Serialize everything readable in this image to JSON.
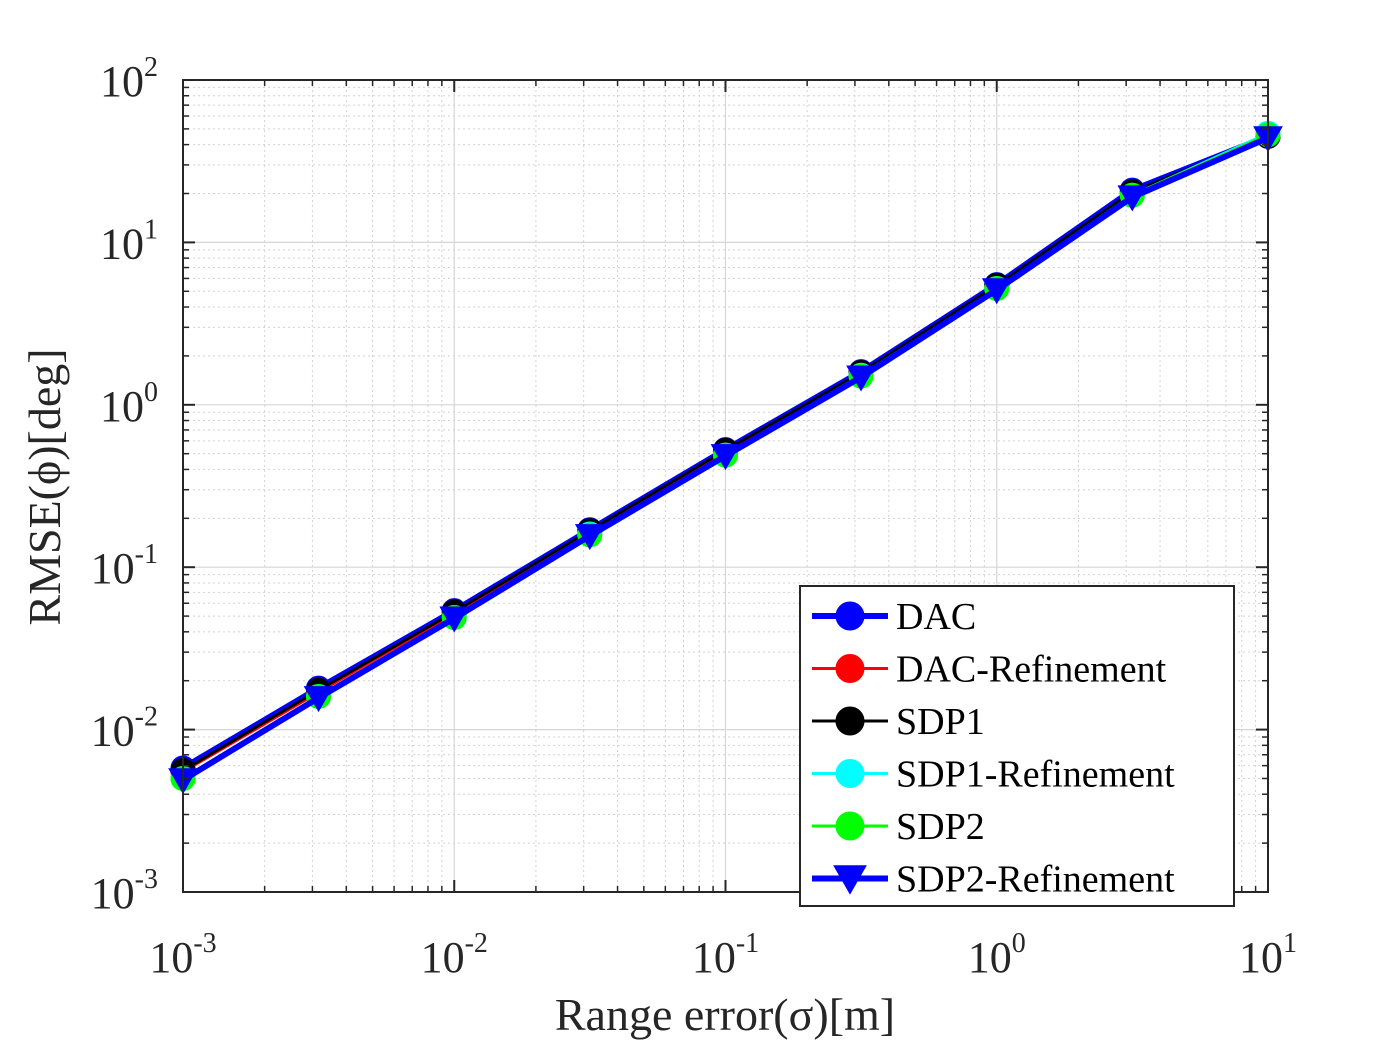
{
  "chart_data": {
    "type": "line",
    "xscale": "log",
    "yscale": "log",
    "xlabel": "Range error(σ)[m]",
    "ylabel": "RMSE(ϕ)[deg]",
    "xlim": [
      0.001,
      10
    ],
    "ylim": [
      0.001,
      100
    ],
    "grid": true,
    "minor_grid": true,
    "legend_location": "bottom-right",
    "x_ticks": [
      {
        "base": "10",
        "exp": "-3",
        "value": 0.001
      },
      {
        "base": "10",
        "exp": "-2",
        "value": 0.01
      },
      {
        "base": "10",
        "exp": "-1",
        "value": 0.1
      },
      {
        "base": "10",
        "exp": "0",
        "value": 1
      },
      {
        "base": "10",
        "exp": "1",
        "value": 10
      }
    ],
    "y_ticks": [
      {
        "base": "10",
        "exp": "-3",
        "value": 0.001
      },
      {
        "base": "10",
        "exp": "-2",
        "value": 0.01
      },
      {
        "base": "10",
        "exp": "-1",
        "value": 0.1
      },
      {
        "base": "10",
        "exp": "0",
        "value": 1
      },
      {
        "base": "10",
        "exp": "1",
        "value": 10
      },
      {
        "base": "10",
        "exp": "2",
        "value": 100
      }
    ],
    "x": [
      0.001,
      0.00316,
      0.01,
      0.0316,
      0.1,
      0.316,
      1,
      3.16,
      10
    ],
    "series": [
      {
        "name": "DAC",
        "color": "#0000FF",
        "marker": "circle",
        "line_width": 6,
        "values": [
          0.0058,
          0.018,
          0.054,
          0.17,
          0.53,
          1.6,
          5.5,
          21,
          45
        ]
      },
      {
        "name": "DAC-Refinement",
        "color": "#FF0000",
        "marker": "circle",
        "line_width": 3,
        "values": [
          0.0055,
          0.017,
          0.052,
          0.165,
          0.52,
          1.58,
          5.4,
          20,
          45
        ]
      },
      {
        "name": "SDP1",
        "color": "#000000",
        "marker": "circle",
        "line_width": 3,
        "values": [
          0.0056,
          0.0175,
          0.053,
          0.168,
          0.525,
          1.58,
          5.45,
          20.5,
          45
        ]
      },
      {
        "name": "SDP1-Refinement",
        "color": "#00FFFF",
        "marker": "circle",
        "line_width": 3,
        "values": [
          0.005,
          0.016,
          0.049,
          0.16,
          0.49,
          1.52,
          5.2,
          19.5,
          47
        ]
      },
      {
        "name": "SDP2",
        "color": "#00FF00",
        "marker": "circle",
        "line_width": 3,
        "values": [
          0.005,
          0.016,
          0.049,
          0.158,
          0.49,
          1.5,
          5.2,
          19.5,
          46
        ]
      },
      {
        "name": "SDP2-Refinement",
        "color": "#0000FF",
        "marker": "triangle-down",
        "line_width": 6,
        "values": [
          0.0049,
          0.0157,
          0.0485,
          0.156,
          0.485,
          1.48,
          5.1,
          19,
          44
        ]
      }
    ]
  }
}
